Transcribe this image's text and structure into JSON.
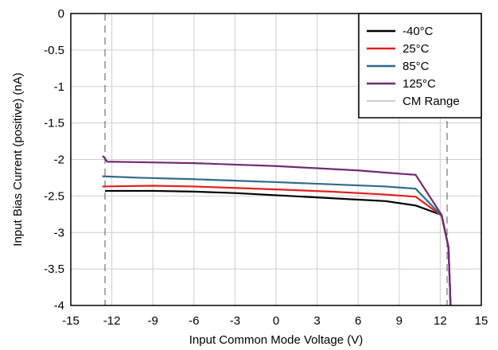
{
  "chart_data": {
    "type": "line",
    "xlabel": "Input Common Mode Voltage (V)",
    "ylabel": "Input Bias Current (positive) (nA)",
    "xlim": [
      -15,
      15
    ],
    "ylim": [
      -4,
      0
    ],
    "xticks": [
      -15,
      -12,
      -9,
      -6,
      -3,
      0,
      3,
      6,
      9,
      12,
      15
    ],
    "xtick_labels": [
      "-15",
      "-12",
      "-9",
      "-6",
      "-3",
      "0",
      "3",
      "6",
      "9",
      "12",
      "15"
    ],
    "yticks": [
      0,
      -0.5,
      -1,
      -1.5,
      -2,
      -2.5,
      -3,
      -3.5,
      -4
    ],
    "ytick_labels": [
      "0",
      "-0.5",
      "-1",
      "-1.5",
      "-2",
      "-2.5",
      "-3",
      "-3.5",
      "-4"
    ],
    "grid": true,
    "legend_position": "top-right",
    "series": [
      {
        "name": "-40°C",
        "color": "#000000",
        "x": [
          -12.5,
          -9,
          -6,
          -3,
          0,
          4,
          8,
          10.2,
          12.1,
          12.6,
          12.7,
          12.75
        ],
        "y": [
          -2.43,
          -2.43,
          -2.44,
          -2.46,
          -2.49,
          -2.53,
          -2.57,
          -2.63,
          -2.76,
          -3.2,
          -3.7,
          -4.0
        ]
      },
      {
        "name": "25°C",
        "color": "#e0201f",
        "x": [
          -12.7,
          -9,
          -6,
          -3,
          0,
          4,
          8,
          10.2,
          12.1,
          12.6,
          12.7,
          12.75
        ],
        "y": [
          -2.37,
          -2.36,
          -2.37,
          -2.39,
          -2.41,
          -2.44,
          -2.48,
          -2.51,
          -2.77,
          -3.2,
          -3.7,
          -4.0
        ]
      },
      {
        "name": "85°C",
        "color": "#2f6b88",
        "x": [
          -12.7,
          -10,
          -6,
          -3,
          0,
          4,
          8,
          10.2,
          12.1,
          12.6,
          12.7,
          12.75
        ],
        "y": [
          -2.23,
          -2.25,
          -2.27,
          -2.29,
          -2.31,
          -2.34,
          -2.37,
          -2.4,
          -2.77,
          -3.2,
          -3.7,
          -4.0
        ]
      },
      {
        "name": "125°C",
        "color": "#6f2b6f",
        "x": [
          -12.7,
          -12.6,
          -12.35,
          -9,
          -6,
          -3,
          0,
          3,
          6,
          8,
          10.2,
          12.1,
          12.6,
          12.7,
          12.75
        ],
        "y": [
          -1.96,
          -1.96,
          -2.03,
          -2.04,
          -2.05,
          -2.07,
          -2.09,
          -2.12,
          -2.15,
          -2.18,
          -2.21,
          -2.76,
          -3.2,
          -3.7,
          -4.0
        ]
      }
    ],
    "reference_lines": {
      "name": "CM Range",
      "color": "#777777",
      "x": [
        -12.5,
        12.5
      ]
    }
  }
}
